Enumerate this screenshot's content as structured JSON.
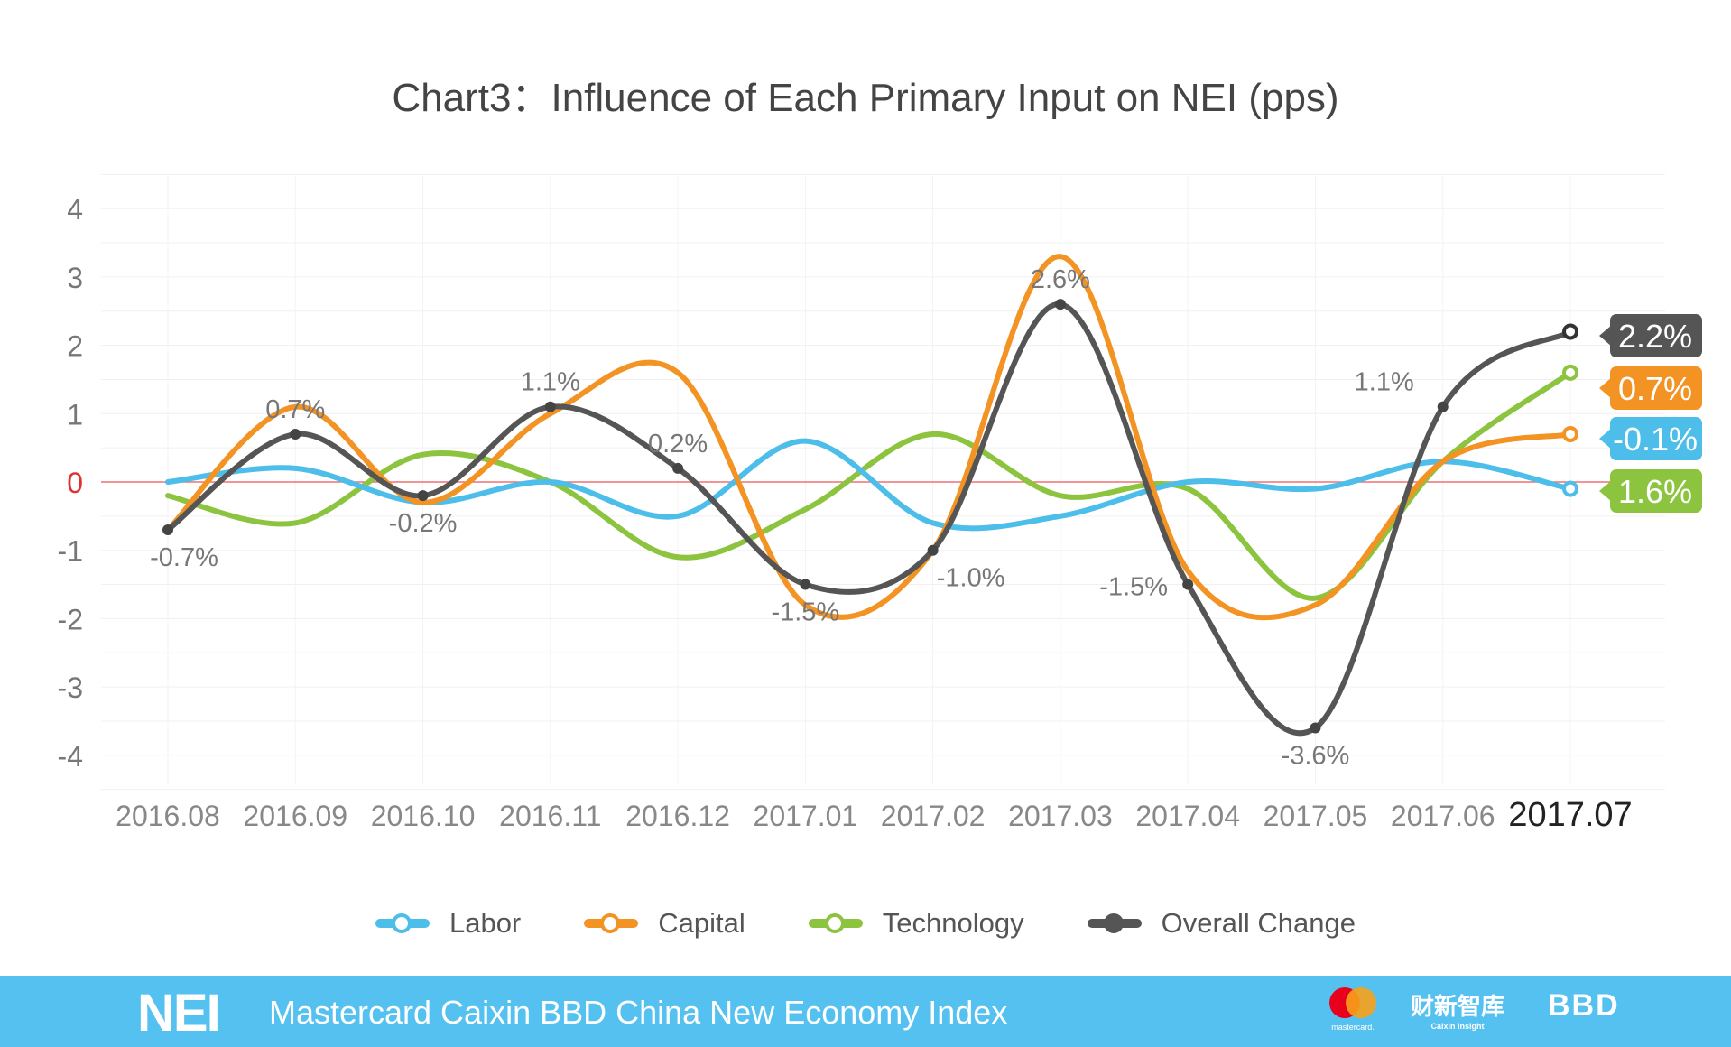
{
  "chart_data": {
    "type": "line",
    "title": "Chart3：Influence of Each Primary Input on NEI (pps)",
    "categories": [
      "2016.08",
      "2016.09",
      "2016.10",
      "2016.11",
      "2016.12",
      "2017.01",
      "2017.02",
      "2017.03",
      "2017.04",
      "2017.05",
      "2017.06",
      "2017.07"
    ],
    "ylim": [
      -4,
      4
    ],
    "yticks": [
      4,
      3,
      2,
      1,
      0,
      -1,
      -2,
      -3,
      -4
    ],
    "grid": true,
    "legend_position": "bottom",
    "series": [
      {
        "name": "Labor",
        "color": "#4dbde9",
        "values": [
          0,
          0.2,
          -0.3,
          0,
          -0.5,
          0.6,
          -0.6,
          -0.5,
          0,
          -0.1,
          0.3,
          -0.1
        ],
        "end_label": "-0.1%"
      },
      {
        "name": "Capital",
        "color": "#f39323",
        "values": [
          -0.7,
          1.1,
          -0.3,
          1.0,
          1.6,
          -1.8,
          -1.0,
          3.3,
          -1.3,
          -1.8,
          0.3,
          0.7
        ],
        "end_label": "0.7%"
      },
      {
        "name": "Technology",
        "color": "#8cc43f",
        "values": [
          -0.2,
          -0.6,
          0.4,
          0,
          -1.1,
          -0.4,
          0.7,
          -0.2,
          -0.1,
          -1.7,
          0.3,
          1.6
        ],
        "end_label": "1.6%"
      },
      {
        "name": "Overall Change",
        "color": "#555555",
        "values": [
          -0.7,
          0.7,
          -0.2,
          1.1,
          0.2,
          -1.5,
          -1.0,
          2.6,
          -1.5,
          -3.6,
          1.1,
          2.2
        ],
        "end_label": "2.2%",
        "data_labels": [
          "-0.7%",
          "0.7%",
          "-0.2%",
          "1.1%",
          "0.2%",
          "-1.5%",
          "-1.0%",
          "2.6%",
          "-1.5%",
          "-3.6%",
          "1.1%",
          ""
        ]
      }
    ]
  },
  "footer": {
    "brand": "NEI",
    "text": "Mastercard Caixin BBD China New Economy Index",
    "logos": [
      "mastercard",
      "财新智库 Caixin Insight",
      "BBD"
    ]
  }
}
